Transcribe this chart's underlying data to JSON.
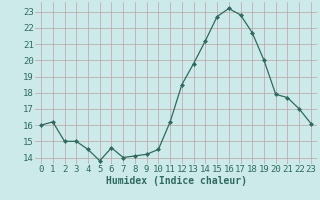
{
  "x": [
    0,
    1,
    2,
    3,
    4,
    5,
    6,
    7,
    8,
    9,
    10,
    11,
    12,
    13,
    14,
    15,
    16,
    17,
    18,
    19,
    20,
    21,
    22,
    23
  ],
  "y": [
    16,
    16.2,
    15,
    15,
    14.5,
    13.8,
    14.6,
    14.0,
    14.1,
    14.2,
    14.5,
    16.2,
    18.5,
    19.8,
    21.2,
    22.7,
    23.2,
    22.8,
    21.7,
    20.0,
    17.9,
    17.7,
    17.0,
    16.1
  ],
  "line_color": "#2e6b5e",
  "marker_color": "#2e6b5e",
  "bg_color": "#cceaea",
  "grid_color_major": "#c0a0a0",
  "grid_color_minor": "#dbc8c8",
  "xlabel": "Humidex (Indice chaleur)",
  "ylabel_ticks": [
    14,
    15,
    16,
    17,
    18,
    19,
    20,
    21,
    22,
    23
  ],
  "xlim": [
    -0.5,
    23.5
  ],
  "ylim": [
    13.6,
    23.6
  ],
  "xlabel_fontsize": 7,
  "tick_fontsize": 6.5
}
